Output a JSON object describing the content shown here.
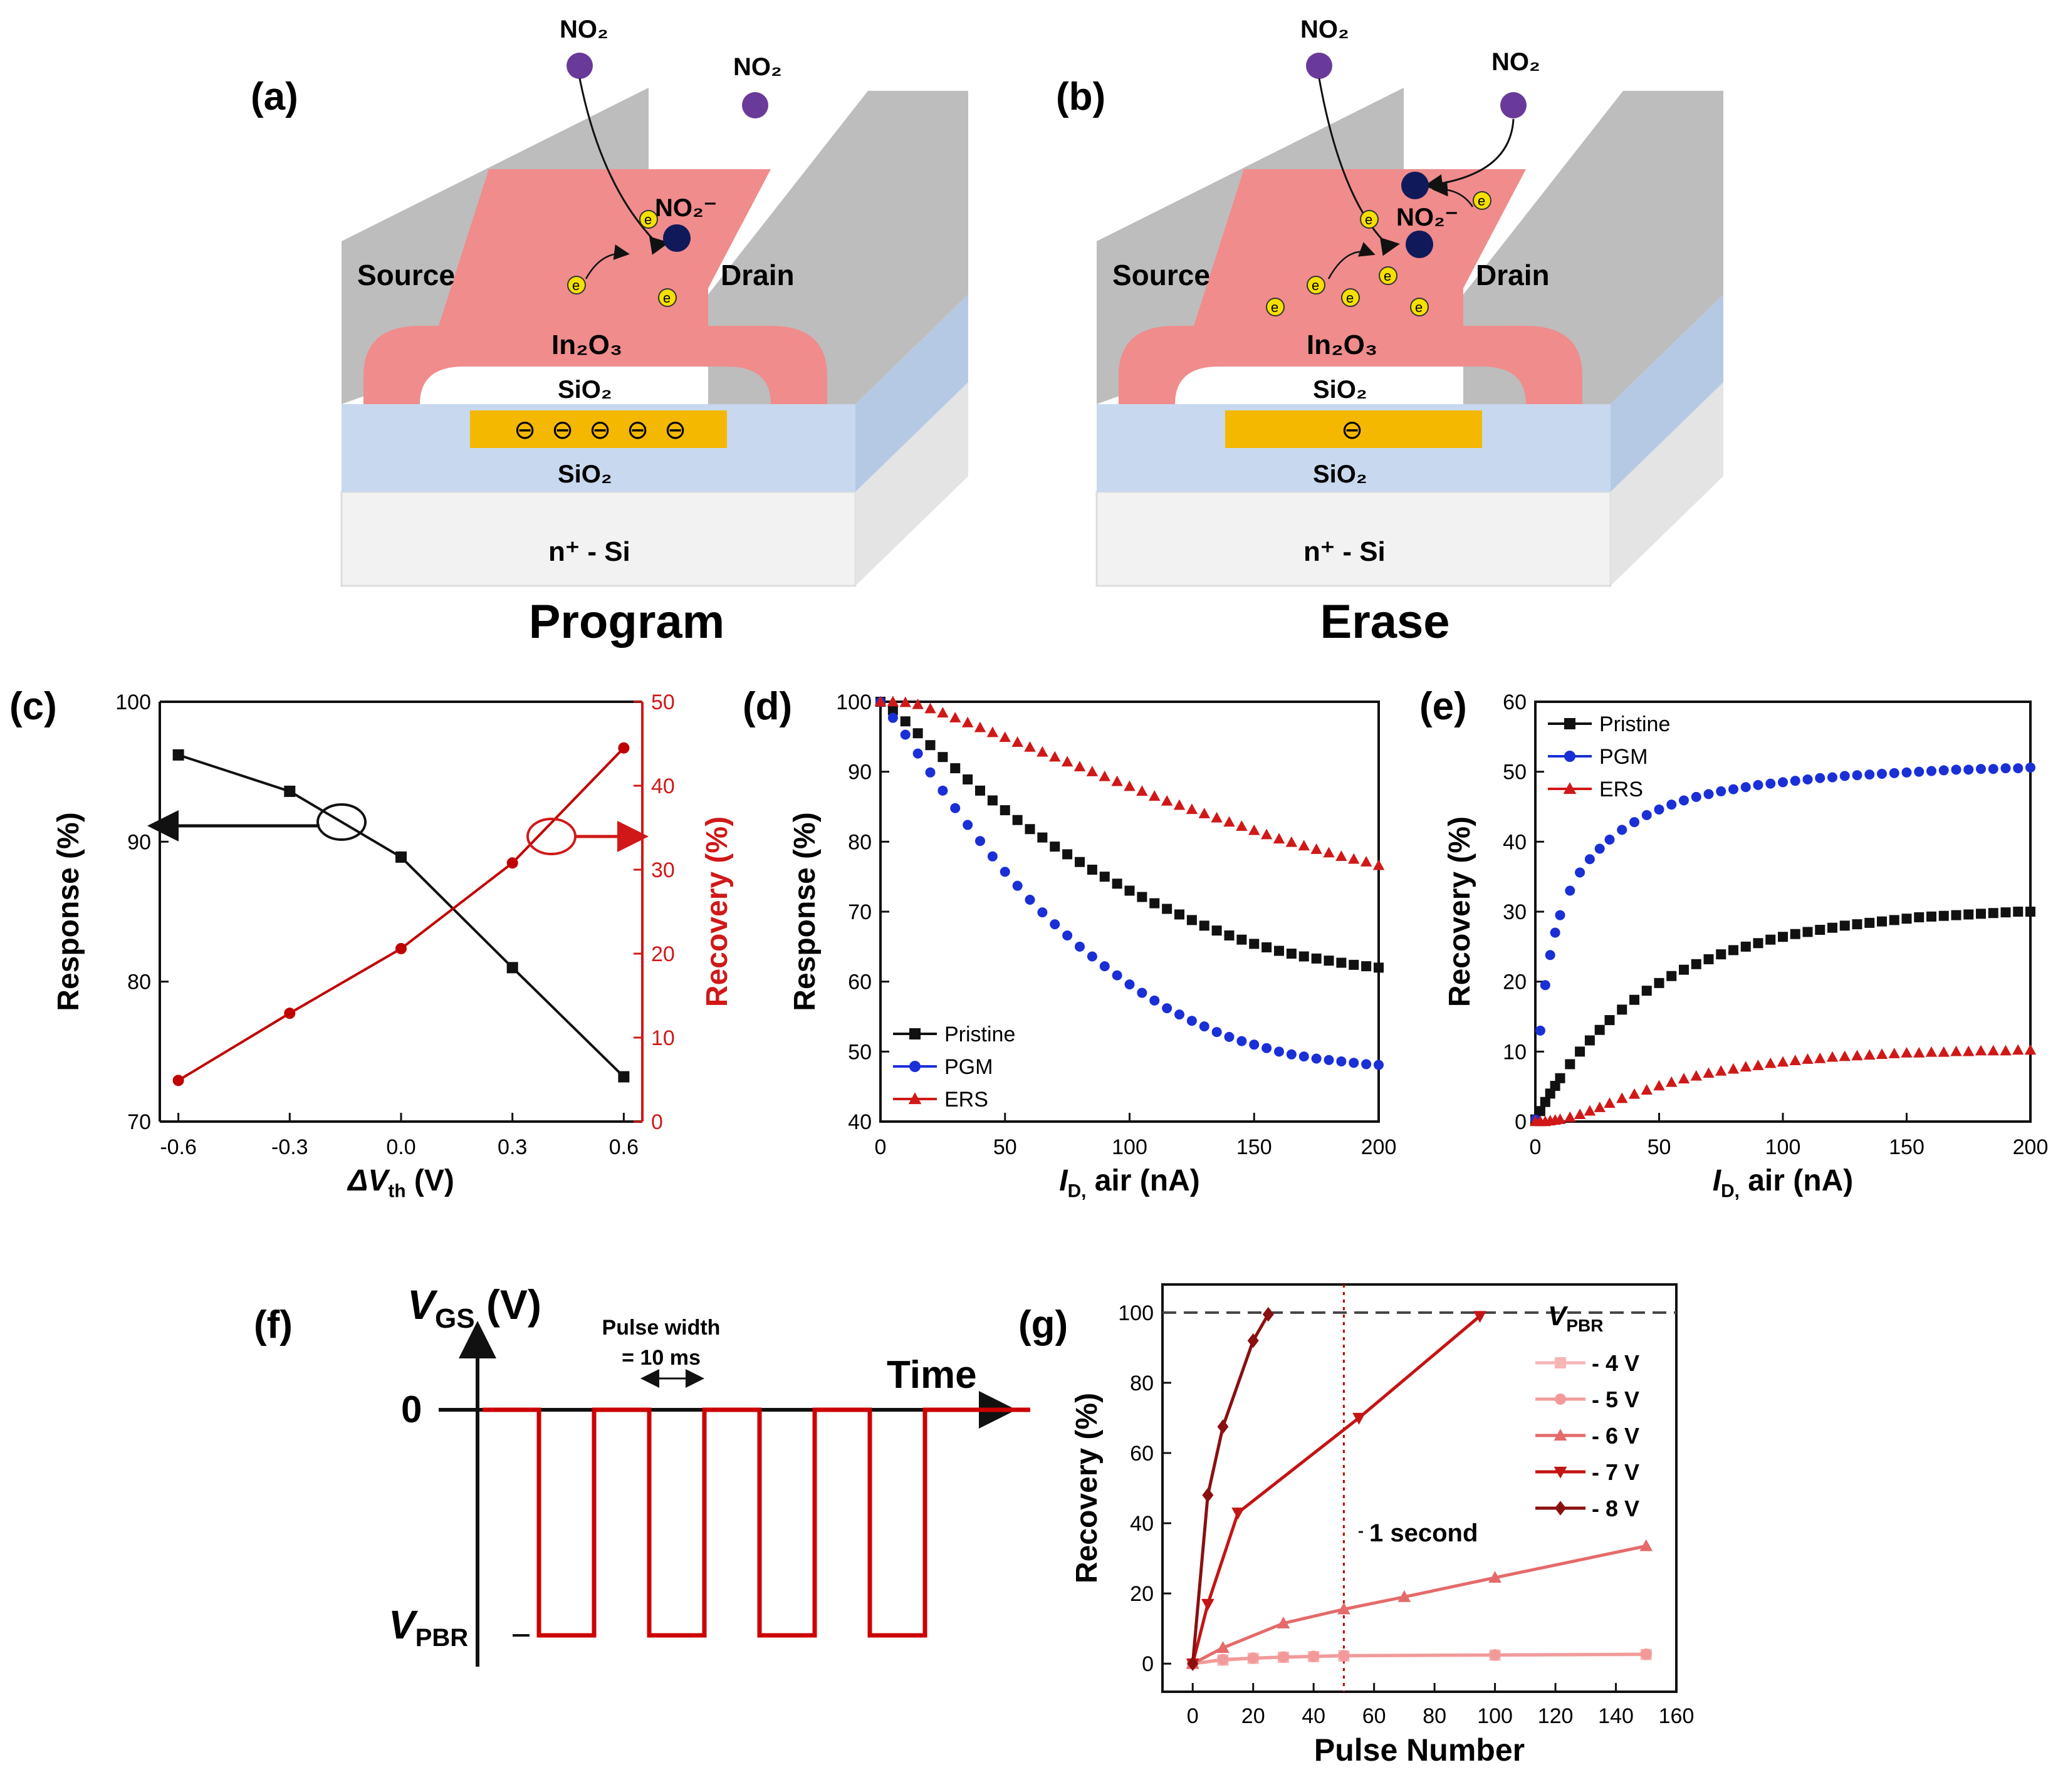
{
  "panels": {
    "a": {
      "label": "(a)",
      "caption": "Program",
      "labels": {
        "source": "Source",
        "drain": "Drain",
        "channel": "In₂O₃",
        "oxide_top": "SiO₂",
        "oxide_bottom": "SiO₂",
        "substrate": "n⁺ - Si",
        "no2": "NO₂",
        "no2_ion": "NO₂⁻",
        "electron": "e",
        "trapped_charge": "⊖"
      }
    },
    "b": {
      "label": "(b)",
      "caption": "Erase",
      "labels": {
        "source": "Source",
        "drain": "Drain",
        "channel": "In₂O₃",
        "oxide_top": "SiO₂",
        "oxide_bottom": "SiO₂",
        "substrate": "n⁺ - Si",
        "no2": "NO₂",
        "no2_ion": "NO₂⁻",
        "electron": "e",
        "trapped_charge": "⊖"
      }
    },
    "c": {
      "label": "(c)"
    },
    "d": {
      "label": "(d)"
    },
    "e": {
      "label": "(e)"
    },
    "f": {
      "label": "(f)",
      "y_label": "V_GS (V)",
      "x_label": "Time",
      "zero_label": "0",
      "low_level_label": "V_PBR",
      "pulse_width_label": "Pulse width",
      "pulse_width_value": "= 10 ms",
      "pulse_count": 4
    },
    "g": {
      "label": "(g)",
      "annotation": "1 second",
      "legend_title": "V_PBR"
    }
  },
  "colors": {
    "black": "#111111",
    "blue": "#1a2fd6",
    "red": "#d01818",
    "darkred": "#c00000",
    "gray": "#bdbdbd",
    "pink": "#ef8f8f",
    "lightblue": "#c8d8ee",
    "substrate": "#f2f2f2",
    "gold": "#f5b800",
    "navy": "#101a5a",
    "purple": "#6a3a9a"
  },
  "chart_data": [
    {
      "panel": "c",
      "type": "line",
      "xlabel": "ΔV_th (V)",
      "ylabel": "Response (%)",
      "y2label": "Recovery (%)",
      "xlim": [
        -0.65,
        0.65
      ],
      "ylim": [
        70,
        100
      ],
      "y2lim": [
        0,
        50
      ],
      "xticks": [
        "-0.6",
        "-0.3",
        "0.0",
        "0.3",
        "0.6"
      ],
      "yticks": [
        "70",
        "80",
        "90",
        "100"
      ],
      "y2ticks": [
        "0",
        "10",
        "20",
        "30",
        "40",
        "50"
      ],
      "series": [
        {
          "name": "Response",
          "axis": "left",
          "marker": "square",
          "x": [
            -0.6,
            -0.3,
            0.0,
            0.3,
            0.6
          ],
          "values": [
            96.2,
            93.6,
            88.9,
            81.0,
            73.2
          ]
        },
        {
          "name": "Recovery",
          "axis": "right",
          "marker": "circle",
          "x": [
            -0.6,
            -0.3,
            0.0,
            0.3,
            0.6
          ],
          "values": [
            4.9,
            12.9,
            20.6,
            30.8,
            44.5
          ]
        }
      ]
    },
    {
      "panel": "d",
      "type": "line",
      "xlabel": "I_D, air (nA)",
      "ylabel": "Response (%)",
      "xlim": [
        0,
        200
      ],
      "ylim": [
        40,
        100
      ],
      "xticks": [
        "0",
        "50",
        "100",
        "150",
        "200"
      ],
      "yticks": [
        "40",
        "50",
        "60",
        "70",
        "80",
        "90",
        "100"
      ],
      "legend": [
        "Pristine",
        "PGM",
        "ERS"
      ],
      "legend_position": "bottom-left",
      "x": [
        0,
        5,
        10,
        15,
        20,
        25,
        30,
        35,
        40,
        45,
        50,
        55,
        60,
        65,
        70,
        75,
        80,
        85,
        90,
        95,
        100,
        105,
        110,
        115,
        120,
        125,
        130,
        135,
        140,
        145,
        150,
        155,
        160,
        165,
        170,
        175,
        180,
        185,
        190,
        195,
        200
      ],
      "series": [
        {
          "name": "Pristine",
          "marker": "square",
          "values": [
            100.0,
            98.8,
            97.2,
            95.5,
            93.8,
            92.1,
            90.5,
            88.9,
            87.3,
            85.9,
            84.5,
            83.1,
            81.8,
            80.6,
            79.3,
            78.2,
            77.1,
            76.0,
            75.0,
            74.0,
            73.0,
            72.1,
            71.2,
            70.4,
            69.6,
            68.8,
            68.0,
            67.3,
            66.6,
            66.0,
            65.4,
            64.9,
            64.4,
            64.0,
            63.6,
            63.3,
            63.0,
            62.7,
            62.4,
            62.2,
            62.0
          ]
        },
        {
          "name": "PGM",
          "marker": "circle",
          "values": [
            100.0,
            97.7,
            95.3,
            92.6,
            89.9,
            87.3,
            84.8,
            82.4,
            80.1,
            77.9,
            75.7,
            73.7,
            71.7,
            69.9,
            68.2,
            66.6,
            65.0,
            63.6,
            62.2,
            60.9,
            59.6,
            58.4,
            57.3,
            56.2,
            55.3,
            54.4,
            53.6,
            52.8,
            52.1,
            51.5,
            51.0,
            50.5,
            50.0,
            49.6,
            49.3,
            49.0,
            48.8,
            48.6,
            48.4,
            48.2,
            48.1
          ]
        },
        {
          "name": "ERS",
          "marker": "triangle",
          "values": [
            100.0,
            100.0,
            99.9,
            99.6,
            99.0,
            98.4,
            97.7,
            97.0,
            96.3,
            95.6,
            94.9,
            94.2,
            93.5,
            92.8,
            92.1,
            91.4,
            90.7,
            90.0,
            89.3,
            88.6,
            87.9,
            87.2,
            86.5,
            85.8,
            85.2,
            84.6,
            84.0,
            83.4,
            82.8,
            82.2,
            81.6,
            81.0,
            80.4,
            79.9,
            79.4,
            78.9,
            78.4,
            77.9,
            77.5,
            77.1,
            76.6
          ]
        }
      ]
    },
    {
      "panel": "e",
      "type": "line",
      "xlabel": "I_D, air (nA)",
      "ylabel": "Recovery (%)",
      "xlim": [
        0,
        200
      ],
      "ylim": [
        0,
        60
      ],
      "xticks": [
        "0",
        "50",
        "100",
        "150",
        "200"
      ],
      "yticks": [
        "0",
        "10",
        "20",
        "30",
        "40",
        "50",
        "60"
      ],
      "legend": [
        "Pristine",
        "PGM",
        "ERS"
      ],
      "legend_position": "top-left",
      "x": [
        0,
        2,
        4,
        6,
        8,
        10,
        14,
        18,
        22,
        26,
        30,
        35,
        40,
        45,
        50,
        55,
        60,
        65,
        70,
        75,
        80,
        85,
        90,
        95,
        100,
        105,
        110,
        115,
        120,
        125,
        130,
        135,
        140,
        145,
        150,
        155,
        160,
        165,
        170,
        175,
        180,
        185,
        190,
        195,
        200
      ],
      "series": [
        {
          "name": "Pristine",
          "marker": "square",
          "values": [
            0.3,
            1.5,
            2.8,
            4.0,
            5.1,
            6.2,
            8.2,
            10.0,
            11.6,
            13.1,
            14.5,
            16.0,
            17.4,
            18.7,
            19.8,
            20.8,
            21.7,
            22.5,
            23.2,
            23.9,
            24.5,
            25.0,
            25.5,
            26.0,
            26.4,
            26.8,
            27.1,
            27.4,
            27.7,
            28.0,
            28.2,
            28.4,
            28.6,
            28.8,
            29.0,
            29.2,
            29.3,
            29.4,
            29.5,
            29.6,
            29.7,
            29.8,
            29.9,
            30.0,
            30.0
          ]
        },
        {
          "name": "PGM",
          "marker": "circle",
          "values": [
            0.3,
            13.0,
            19.5,
            23.8,
            27.0,
            29.5,
            33.0,
            35.6,
            37.5,
            39.0,
            40.3,
            41.7,
            42.8,
            43.8,
            44.6,
            45.3,
            45.9,
            46.4,
            46.8,
            47.2,
            47.5,
            47.8,
            48.1,
            48.3,
            48.5,
            48.7,
            48.9,
            49.1,
            49.2,
            49.4,
            49.5,
            49.6,
            49.7,
            49.8,
            49.9,
            50.0,
            50.1,
            50.2,
            50.3,
            50.3,
            50.4,
            50.4,
            50.5,
            50.5,
            50.6
          ]
        },
        {
          "name": "ERS",
          "marker": "triangle",
          "values": [
            0.0,
            0.0,
            0.0,
            0.1,
            0.2,
            0.3,
            0.6,
            1.0,
            1.5,
            2.0,
            2.6,
            3.3,
            3.9,
            4.5,
            5.1,
            5.6,
            6.1,
            6.5,
            6.9,
            7.2,
            7.5,
            7.8,
            8.0,
            8.3,
            8.5,
            8.7,
            8.9,
            9.0,
            9.2,
            9.3,
            9.4,
            9.5,
            9.6,
            9.7,
            9.8,
            9.8,
            9.9,
            9.9,
            10.0,
            10.0,
            10.1,
            10.1,
            10.1,
            10.2,
            10.2
          ]
        }
      ]
    },
    {
      "panel": "g",
      "type": "line",
      "xlabel": "Pulse Number",
      "ylabel": "Recovery (%)",
      "xlim": [
        -10,
        160
      ],
      "ylim": [
        -8,
        108
      ],
      "xticks": [
        "0",
        "20",
        "40",
        "60",
        "80",
        "100",
        "120",
        "140",
        "160"
      ],
      "yticks": [
        "0",
        "20",
        "40",
        "60",
        "80",
        "100"
      ],
      "reference_line_y": 100,
      "reference_line_x": 50,
      "legend_title": "V_PBR",
      "series": [
        {
          "name": "- 4 V",
          "marker": "square",
          "x": [
            0,
            10,
            20,
            30,
            40,
            50,
            100,
            150
          ],
          "values": [
            0,
            1.0,
            1.5,
            1.8,
            2.0,
            2.2,
            2.4,
            2.6
          ]
        },
        {
          "name": "- 5 V",
          "marker": "circle",
          "x": [
            0,
            10,
            20,
            30,
            40,
            50,
            100,
            150
          ],
          "values": [
            0,
            1.2,
            1.6,
            1.9,
            2.1,
            2.3,
            2.5,
            2.7
          ]
        },
        {
          "name": "- 6 V",
          "marker": "triangle",
          "x": [
            0,
            10,
            30,
            50,
            70,
            100,
            150
          ],
          "values": [
            0,
            4.5,
            11.5,
            15.5,
            19.0,
            24.5,
            33.5
          ]
        },
        {
          "name": "- 7 V",
          "marker": "triangle-down",
          "x": [
            0,
            5,
            15,
            55,
            95
          ],
          "values": [
            0,
            17.0,
            43.0,
            70.0,
            99.0
          ]
        },
        {
          "name": "- 8 V",
          "marker": "diamond",
          "x": [
            0,
            5,
            10,
            20,
            25
          ],
          "values": [
            0,
            48.0,
            67.5,
            92.0,
            99.5
          ]
        }
      ]
    }
  ]
}
